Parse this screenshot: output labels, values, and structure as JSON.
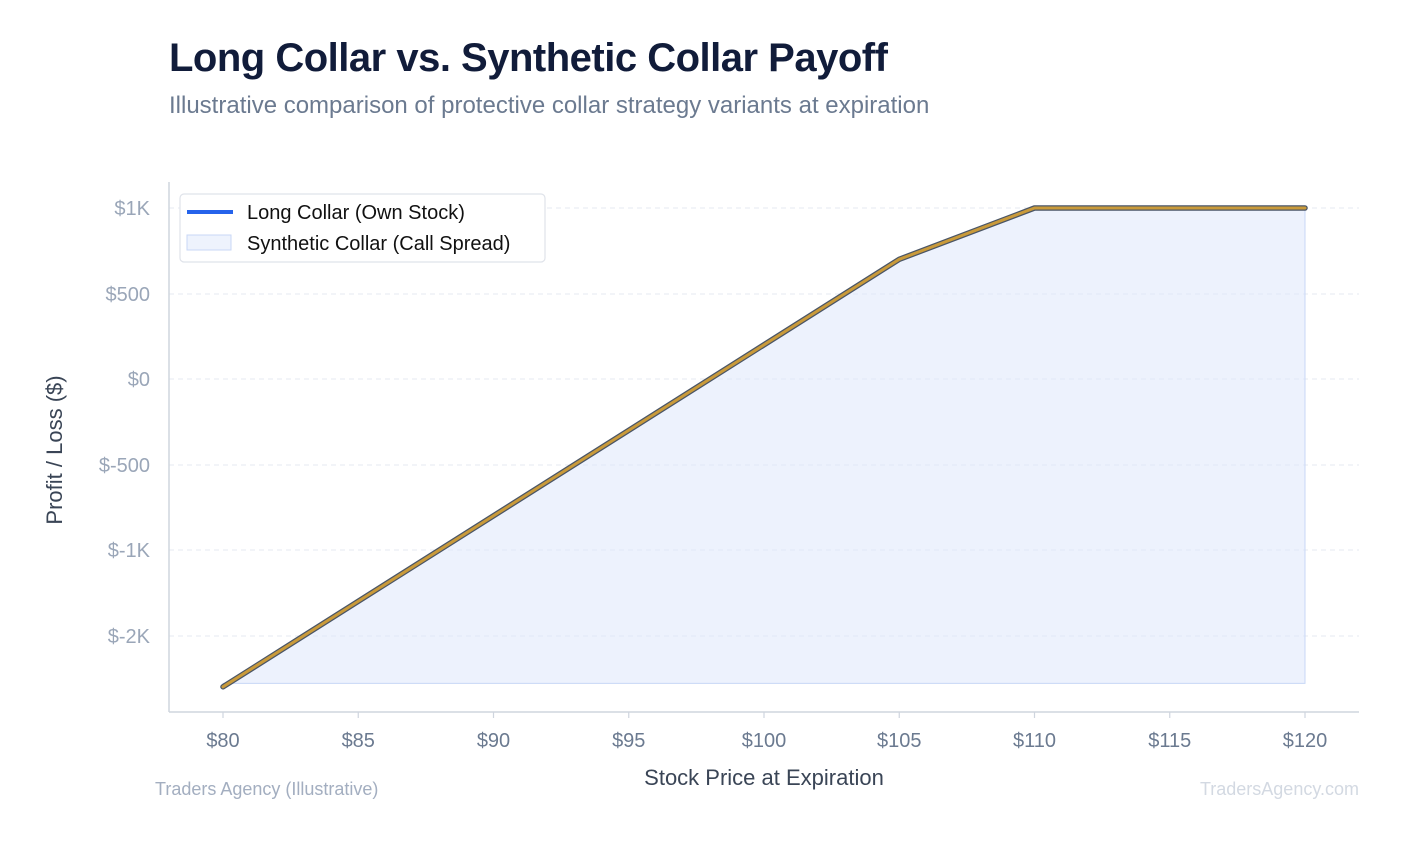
{
  "title": "Long Collar vs. Synthetic Collar Payoff",
  "subtitle": "Illustrative comparison of protective collar strategy variants at expiration",
  "footer": {
    "source": "Traders Agency (Illustrative)",
    "brand": "TradersAgency.com"
  },
  "chart_data": {
    "type": "line",
    "xlabel": "Stock Price at Expiration",
    "ylabel": "Profit / Loss ($)",
    "xlim": [
      78,
      122
    ],
    "ylim": [
      -1950,
      1100
    ],
    "x_ticks": [
      80,
      85,
      90,
      95,
      100,
      105,
      110,
      115,
      120
    ],
    "x_tick_labels": [
      "$80",
      "$85",
      "$90",
      "$95",
      "$100",
      "$105",
      "$110",
      "$115",
      "$120"
    ],
    "y_ticks": [
      1000,
      500,
      0,
      -500,
      -1000,
      -1500
    ],
    "y_tick_labels": [
      "$1K",
      "$500",
      "$0",
      "$-500",
      "$-1K",
      "$-2K"
    ],
    "grid": true,
    "legend_position": "top-left",
    "series": [
      {
        "name": "Long Collar (Own Stock)",
        "style": "line",
        "color": "#2563eb",
        "x": [
          80,
          105,
          110,
          120
        ],
        "y": [
          -1800,
          700,
          1000,
          1000
        ]
      },
      {
        "name": "Synthetic Collar (Call Spread)",
        "style": "area",
        "color": "#dbe6fb",
        "x": [
          80,
          105,
          110,
          120
        ],
        "y": [
          -1800,
          700,
          1000,
          1000
        ]
      }
    ],
    "overlay_line_color": "#c99a3a",
    "fill_baseline": -1780
  }
}
